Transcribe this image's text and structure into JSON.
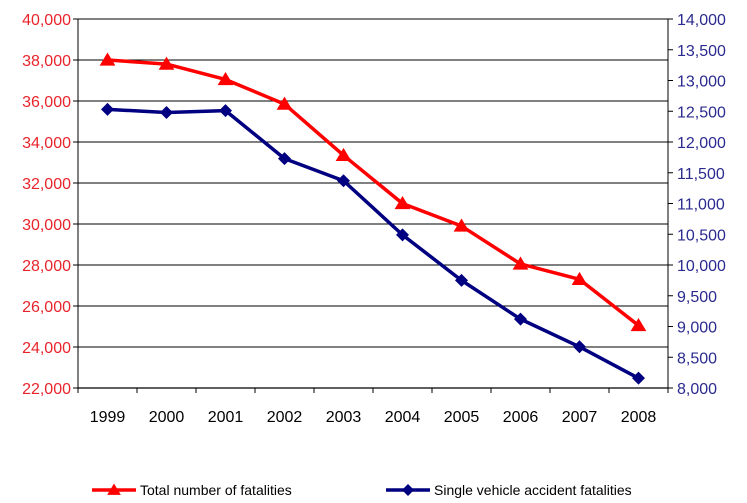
{
  "chart_data": {
    "type": "line",
    "categories": [
      "1999",
      "2000",
      "2001",
      "2002",
      "2003",
      "2004",
      "2005",
      "2006",
      "2007",
      "2008"
    ],
    "y_left": {
      "range": [
        22000,
        40000
      ],
      "ticks": [
        "22,000",
        "24,000",
        "26,000",
        "28,000",
        "30,000",
        "32,000",
        "34,000",
        "36,000",
        "38,000",
        "40,000"
      ],
      "tick_values": [
        22000,
        24000,
        26000,
        28000,
        30000,
        32000,
        34000,
        36000,
        38000,
        40000
      ],
      "color": "#e8242b"
    },
    "y_right": {
      "range": [
        8000,
        14000
      ],
      "ticks": [
        "8,000",
        "8,500",
        "9,000",
        "9,500",
        "10,000",
        "10,500",
        "11,000",
        "11,500",
        "12,000",
        "12,500",
        "13,000",
        "13,500",
        "14,000"
      ],
      "tick_values": [
        8000,
        8500,
        9000,
        9500,
        10000,
        10500,
        11000,
        11500,
        12000,
        12500,
        13000,
        13500,
        14000
      ],
      "color": "#2a2a8f"
    },
    "grid": true,
    "legend_position": "bottom",
    "series": [
      {
        "name": "Total number of fatalities",
        "axis": "left",
        "color": "#ff0000",
        "marker": "triangle",
        "values": [
          38000,
          37800,
          37050,
          35850,
          33350,
          31000,
          29900,
          28050,
          27300,
          25050
        ]
      },
      {
        "name": "Single vehicle accident fatalities",
        "axis": "right",
        "color": "#000080",
        "marker": "diamond",
        "values": [
          12530,
          12480,
          12510,
          11730,
          11370,
          10490,
          9750,
          9120,
          8670,
          8160
        ]
      }
    ]
  }
}
